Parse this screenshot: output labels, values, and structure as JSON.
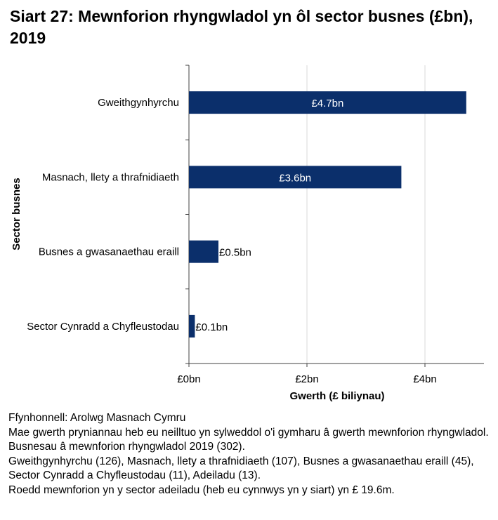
{
  "title": "Siart 27: Mewnforion rhyngwladol yn ôl sector busnes (£bn), 2019",
  "chart_data": {
    "type": "bar",
    "orientation": "horizontal",
    "title": "Siart 27: Mewnforion rhyngwladol yn ôl sector busnes (£bn), 2019",
    "categories": [
      "Gweithgynhyrchu",
      "Masnach, llety a thrafnidiaeth",
      "Busnes a gwasanaethau eraill",
      "Sector Cynradd a Chyfleustodau"
    ],
    "values": [
      4.7,
      3.6,
      0.5,
      0.1
    ],
    "data_labels": [
      "£4.7bn",
      "£3.6bn",
      "£0.5bn",
      "£0.1bn"
    ],
    "xlabel": "Gwerth (£ biliynau)",
    "ylabel": "Sector busnes",
    "xlim": [
      0,
      5
    ],
    "xticks": [
      0,
      2,
      4
    ],
    "xtick_labels": [
      "£0bn",
      "£2bn",
      "£4bn"
    ],
    "grid": true,
    "bar_color": "#0b2f6b",
    "legend": "none"
  },
  "notes": [
    "Ffynhonnell: Arolwg Masnach Cymru",
    "Mae gwerth pryniannau heb eu neilltuo yn sylweddol o'i gymharu â gwerth mewnforion rhyngwladol.",
    "Busnesau â mewnforion rhyngwladol 2019 (302).",
    "Gweithgynhyrchu (126), Masnach, llety a thrafnidiaeth (107), Busnes a gwasanaethau eraill (45), Sector Cynradd a Chyfleustodau (11), Adeiladu (13).",
    "Roedd mewnforion yn y sector adeiladu (heb eu cynnwys yn y siart) yn £ 19.6m."
  ]
}
